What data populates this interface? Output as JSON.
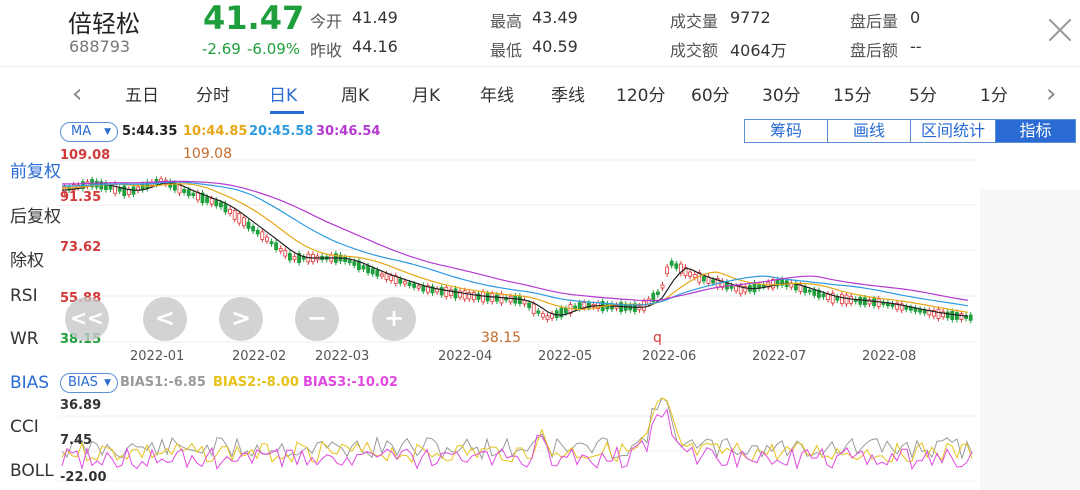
{
  "header": {
    "name": "倍轻松",
    "code": "688793",
    "price": "41.47",
    "change": "-2.69",
    "change_pct": "-6.09%",
    "open_label": "今开",
    "open": "41.49",
    "prev_close_label": "昨收",
    "prev_close": "44.16",
    "high_label": "最高",
    "high": "43.49",
    "low_label": "最低",
    "low": "40.59",
    "volume_label": "成交量",
    "volume": "9772",
    "amount_label": "成交额",
    "amount": "4064万",
    "after_vol_label": "盘后量",
    "after_vol": "0",
    "after_amt_label": "盘后额",
    "after_amt": "--",
    "close_icon": "close-icon"
  },
  "tabs": [
    "五日",
    "分时",
    "日K",
    "周K",
    "月K",
    "年线",
    "季线",
    "120分",
    "60分",
    "30分",
    "15分",
    "5分",
    "1分"
  ],
  "active_tab": "日K",
  "ma": {
    "selector": "MA",
    "ma5": "5:44.35",
    "ma10": "10:44.85",
    "ma20": "20:45.58",
    "ma30": "30:46.54"
  },
  "tools": [
    "筹码",
    "画线",
    "区间统计",
    "指标"
  ],
  "active_tool": "指标",
  "side_menu": [
    "前复权",
    "后复权",
    "除权",
    "RSI",
    "WR",
    "BIAS",
    "CCI",
    "BOLL"
  ],
  "side_active": [
    "前复权",
    "BIAS"
  ],
  "price_axis": [
    "109.08",
    "91.35",
    "73.62",
    "55.88",
    "38.15"
  ],
  "annotations": {
    "max": "109.08",
    "min": "38.15",
    "marker": "q"
  },
  "dates": [
    "2022-01",
    "2022-02",
    "2022-03",
    "2022-04",
    "2022-05",
    "2022-06",
    "2022-07",
    "2022-08"
  ],
  "zoom_buttons": [
    "<<",
    "<",
    ">",
    "−",
    "+"
  ],
  "bias": {
    "selector": "BIAS",
    "bias1": "BIAS1:-6.85",
    "bias2": "BIAS2:-8.00",
    "bias3": "BIAS3:-10.02",
    "axis": [
      "36.89",
      "7.45",
      "-22.00"
    ]
  },
  "colors": {
    "up": "#e03a3a",
    "down": "#1e9e3c",
    "ma5": "#222222",
    "ma10": "#e6a817",
    "ma20": "#2e9be0",
    "ma30": "#b43ad1",
    "bias1": "#9a9a9a",
    "bias2": "#e6c21a",
    "bias3": "#e04ae0",
    "accent": "#2a6bd4"
  }
}
